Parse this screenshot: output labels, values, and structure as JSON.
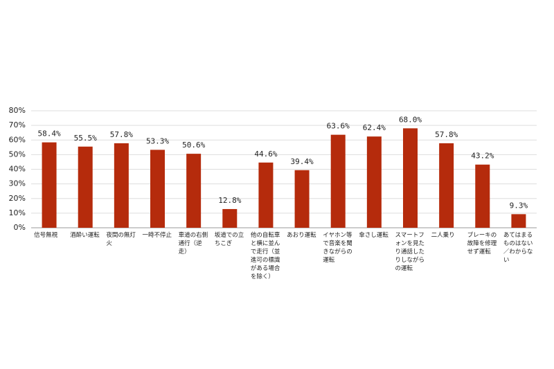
{
  "chart_data": {
    "type": "bar",
    "categories": [
      "信号無視",
      "酒酔い運転",
      "夜間の無灯火",
      "一時不停止",
      "車道の右側通行（逆走）",
      "坂道での立ちこぎ",
      "他の自転車と横に並んで走行（並進可の標識がある場合を除く）",
      "あおり運転",
      "イヤホン等で音楽を聞きながらの運転",
      "傘さし運転",
      "スマートフォンを見たり通話したりしながらの運転",
      "二人乗り",
      "ブレーキの故障を修理せず運転",
      "あてはまるものはない／わからない"
    ],
    "values": [
      58.4,
      55.5,
      57.8,
      53.3,
      50.6,
      12.8,
      44.6,
      39.4,
      63.6,
      62.4,
      68.0,
      57.8,
      43.2,
      9.3
    ],
    "value_labels": [
      "58.4%",
      "55.5%",
      "57.8%",
      "53.3%",
      "50.6%",
      "12.8%",
      "44.6%",
      "39.4%",
      "63.6%",
      "62.4%",
      "68.0%",
      "57.8%",
      "43.2%",
      "9.3%"
    ],
    "color": "#b52b0c",
    "ylim": [
      0,
      80
    ],
    "yticks": [
      {
        "value": 0,
        "label": "0%"
      },
      {
        "value": 10,
        "label": "10%"
      },
      {
        "value": 20,
        "label": "20%"
      },
      {
        "value": 30,
        "label": "30%"
      },
      {
        "value": 40,
        "label": "40%"
      },
      {
        "value": 50,
        "label": "50%"
      },
      {
        "value": 60,
        "label": "60%"
      },
      {
        "value": 70,
        "label": "70%"
      },
      {
        "value": 80,
        "label": "80%"
      }
    ],
    "grid": true
  }
}
